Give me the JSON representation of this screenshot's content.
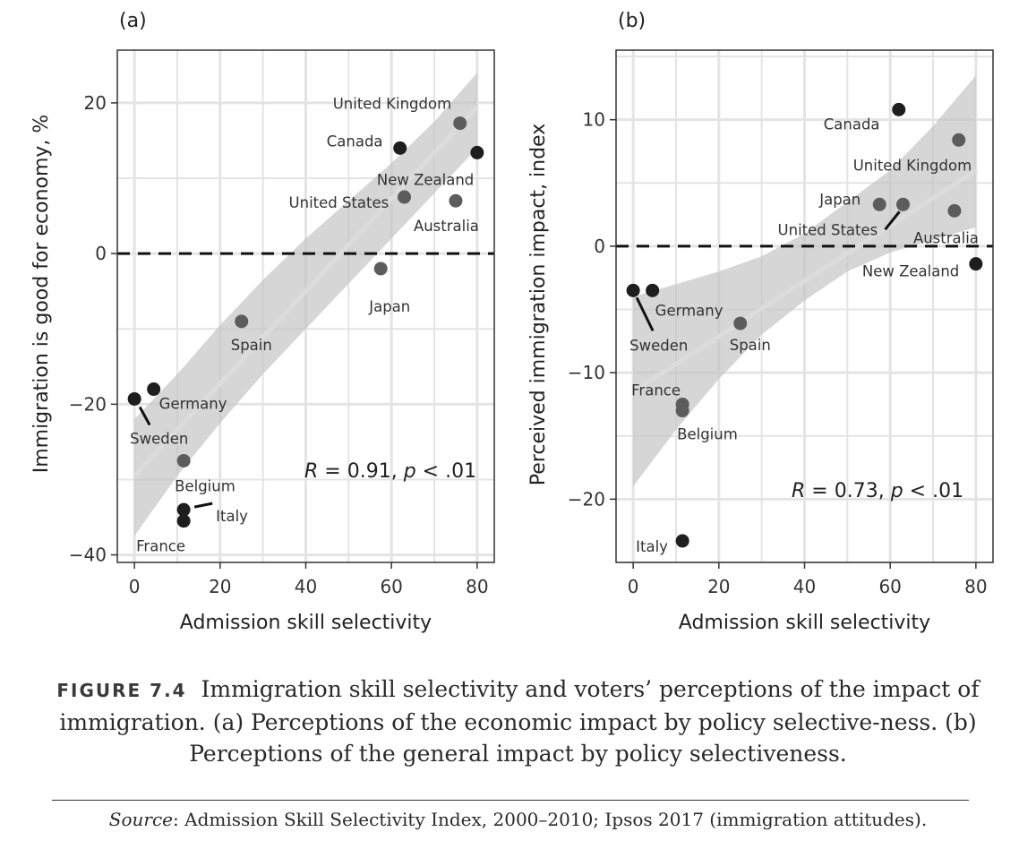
{
  "chart_data": [
    {
      "type": "scatter",
      "panel": "(a)",
      "xlabel": "Admission skill selectivity",
      "ylabel": "Immigration is good for economy, %",
      "xlim": [
        -4,
        84
      ],
      "ylim": [
        -41,
        27
      ],
      "xticks": [
        0,
        20,
        40,
        60,
        80
      ],
      "yticks": [
        -40,
        -20,
        0,
        20
      ],
      "xtick_labels": [
        "0",
        "20",
        "40",
        "60",
        "80"
      ],
      "ytick_labels": [
        "−40",
        "−20",
        "0",
        "20"
      ],
      "reference_line": 0,
      "annotation": {
        "r_label": "R",
        "r_text": " = 0.91, ",
        "p_label": "p",
        "p_text": " < .01"
      },
      "fit": {
        "x0": 0,
        "y0": -29.5,
        "x1": 80,
        "y1": 19.5
      },
      "band": {
        "x": [
          0,
          10,
          20,
          30,
          40,
          50,
          60,
          70,
          80
        ],
        "upper": [
          -22,
          -16,
          -9.5,
          -3.5,
          2,
          7,
          12,
          17.5,
          24
        ],
        "lower": [
          -37.5,
          -29.5,
          -22.5,
          -16,
          -10,
          -4,
          2,
          8,
          14
        ]
      },
      "points": [
        {
          "label": "United Kingdom",
          "x": 76,
          "y": 17.3,
          "color": "#5c5c5c"
        },
        {
          "label": "Canada",
          "x": 62,
          "y": 14,
          "color": "#1e1e1e"
        },
        {
          "label": "New Zealand",
          "x": 80,
          "y": 13.4,
          "color": "#1e1e1e"
        },
        {
          "label": "United States",
          "x": 63,
          "y": 7.5,
          "color": "#5c5c5c"
        },
        {
          "label": "Australia",
          "x": 75,
          "y": 7,
          "color": "#5c5c5c"
        },
        {
          "label": "Japan",
          "x": 57.5,
          "y": -2,
          "color": "#5c5c5c"
        },
        {
          "label": "Spain",
          "x": 25,
          "y": -9,
          "color": "#5c5c5c"
        },
        {
          "label": "Germany",
          "x": 4.5,
          "y": -18,
          "color": "#1e1e1e"
        },
        {
          "label": "Sweden",
          "x": 0,
          "y": -19.3,
          "color": "#1e1e1e"
        },
        {
          "label": "Belgium",
          "x": 11.5,
          "y": -27.5,
          "color": "#5c5c5c"
        },
        {
          "label": "Italy",
          "x": 11.5,
          "y": -34,
          "color": "#1e1e1e"
        },
        {
          "label": "France",
          "x": 11.5,
          "y": -35.5,
          "color": "#1e1e1e"
        }
      ]
    },
    {
      "type": "scatter",
      "panel": "(b)",
      "xlabel": "Admission skill selectivity",
      "ylabel": "Perceived immigration impact, index",
      "xlim": [
        -4,
        84
      ],
      "ylim": [
        -25,
        15.5
      ],
      "xticks": [
        0,
        20,
        40,
        60,
        80
      ],
      "yticks": [
        -20,
        -10,
        0,
        10
      ],
      "xtick_labels": [
        "0",
        "20",
        "40",
        "60",
        "80"
      ],
      "ytick_labels": [
        "−20",
        "−10",
        "0",
        "10"
      ],
      "reference_line": 0,
      "annotation": {
        "r_label": "R",
        "r_text": " = 0.73, ",
        "p_label": "p",
        "p_text": " < .01"
      },
      "fit": {
        "x0": 0,
        "y0": -11.5,
        "x1": 80,
        "y1": 6
      },
      "band": {
        "x": [
          0,
          10,
          20,
          30,
          40,
          50,
          60,
          70,
          80
        ],
        "upper": [
          -4,
          -3,
          -2,
          -0.8,
          1,
          3.5,
          6,
          9.5,
          13.5
        ],
        "lower": [
          -19,
          -14.5,
          -10.5,
          -7,
          -4.3,
          -2,
          -0.5,
          0.5,
          1.5
        ]
      },
      "points": [
        {
          "label": "Canada",
          "x": 62,
          "y": 10.8,
          "color": "#1e1e1e"
        },
        {
          "label": "United Kingdom",
          "x": 76,
          "y": 8.4,
          "color": "#5c5c5c"
        },
        {
          "label": "Japan",
          "x": 57.5,
          "y": 3.3,
          "color": "#5c5c5c"
        },
        {
          "label": "United States",
          "x": 63,
          "y": 3.3,
          "color": "#5c5c5c"
        },
        {
          "label": "Australia",
          "x": 75,
          "y": 2.8,
          "color": "#5c5c5c"
        },
        {
          "label": "New Zealand",
          "x": 80,
          "y": -1.4,
          "color": "#1e1e1e"
        },
        {
          "label": "Germany",
          "x": 4.5,
          "y": -3.5,
          "color": "#1e1e1e"
        },
        {
          "label": "Sweden",
          "x": 0,
          "y": -3.5,
          "color": "#1e1e1e"
        },
        {
          "label": "Spain",
          "x": 25,
          "y": -6.1,
          "color": "#5c5c5c"
        },
        {
          "label": "France",
          "x": 11.5,
          "y": -12.5,
          "color": "#5c5c5c"
        },
        {
          "label": "Belgium",
          "x": 11.5,
          "y": -13,
          "color": "#5c5c5c"
        },
        {
          "label": "Italy",
          "x": 11.5,
          "y": -23.3,
          "color": "#1e1e1e"
        }
      ]
    }
  ],
  "caption": {
    "figure_label": "FIGURE 7.4",
    "text": "Immigration skill selectivity and voters’ perceptions of the impact of immigration. (a) Perceptions of the economic impact by policy selective-ness. (b) Perceptions of the general impact by policy selectiveness."
  },
  "source": {
    "label": "Source",
    "text": ": Admission Skill Selectivity Index, 2000–2010; Ipsos 2017 (immigration attitudes)."
  }
}
